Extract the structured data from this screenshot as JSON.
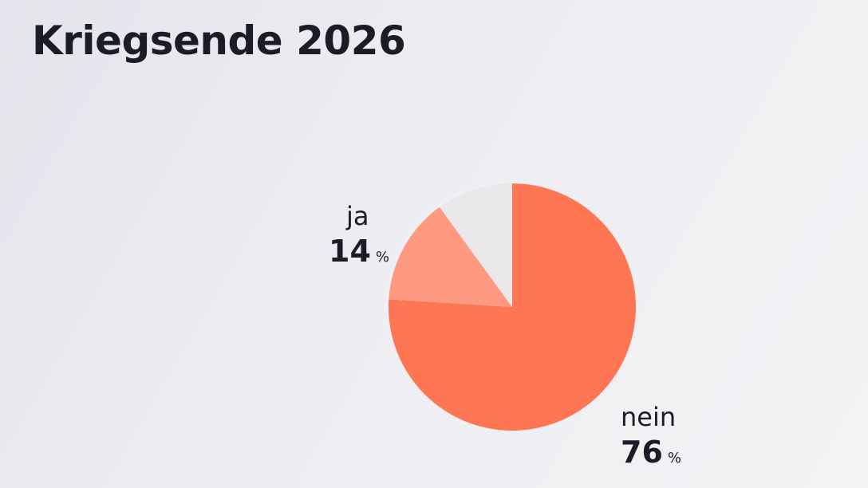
{
  "title": "Kriegsende 2026",
  "chart_data": {
    "type": "pie",
    "title": "Kriegsende 2026",
    "categories": [
      "nein",
      "ja",
      ""
    ],
    "values": [
      76,
      14,
      10
    ],
    "unit": "%",
    "colors": [
      "#ff7654",
      "#ff9a82",
      "#ebe8ec"
    ],
    "labels": [
      {
        "label": "ja",
        "value": "14",
        "unit": "%"
      },
      {
        "label": "nein",
        "value": "76",
        "unit": "%"
      }
    ]
  }
}
